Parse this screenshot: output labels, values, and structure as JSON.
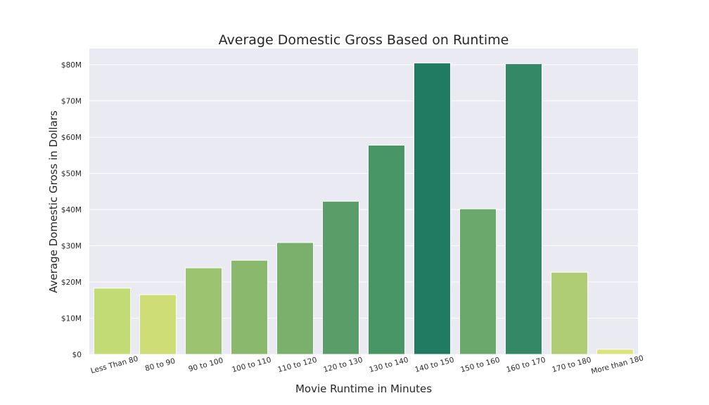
{
  "chart_data": {
    "type": "bar",
    "title": "Average Domestic Gross Based on Runtime",
    "xlabel": "Movie Runtime in Minutes",
    "ylabel": "Average Domestic Gross in Dollars",
    "categories": [
      "Less Than 80",
      "80 to 90",
      "90 to 100",
      "100 to 110",
      "110 to 120",
      "120 to 130",
      "130 to 140",
      "140 to 150",
      "150 to 160",
      "160 to 170",
      "170 to 180",
      "More than 180"
    ],
    "values": [
      18300000,
      16500000,
      23900000,
      26000000,
      30900000,
      42300000,
      57800000,
      80500000,
      40200000,
      80300000,
      22700000,
      1400000
    ],
    "colors": [
      "#c3db75",
      "#cedd76",
      "#9cc370",
      "#8ab96d",
      "#7bb06c",
      "#5a9d69",
      "#489566",
      "#217b62",
      "#6ba86b",
      "#348865",
      "#aecd74",
      "#dde37a"
    ],
    "ylim": [
      0,
      84500000
    ],
    "yticks": [
      0,
      10000000,
      20000000,
      30000000,
      40000000,
      50000000,
      60000000,
      70000000,
      80000000
    ],
    "ytick_labels": [
      "$0",
      "$10M",
      "$20M",
      "$30M",
      "$40M",
      "$50M",
      "$60M",
      "$70M",
      "$80M"
    ],
    "grid": true,
    "background": "#eaeaf2"
  }
}
